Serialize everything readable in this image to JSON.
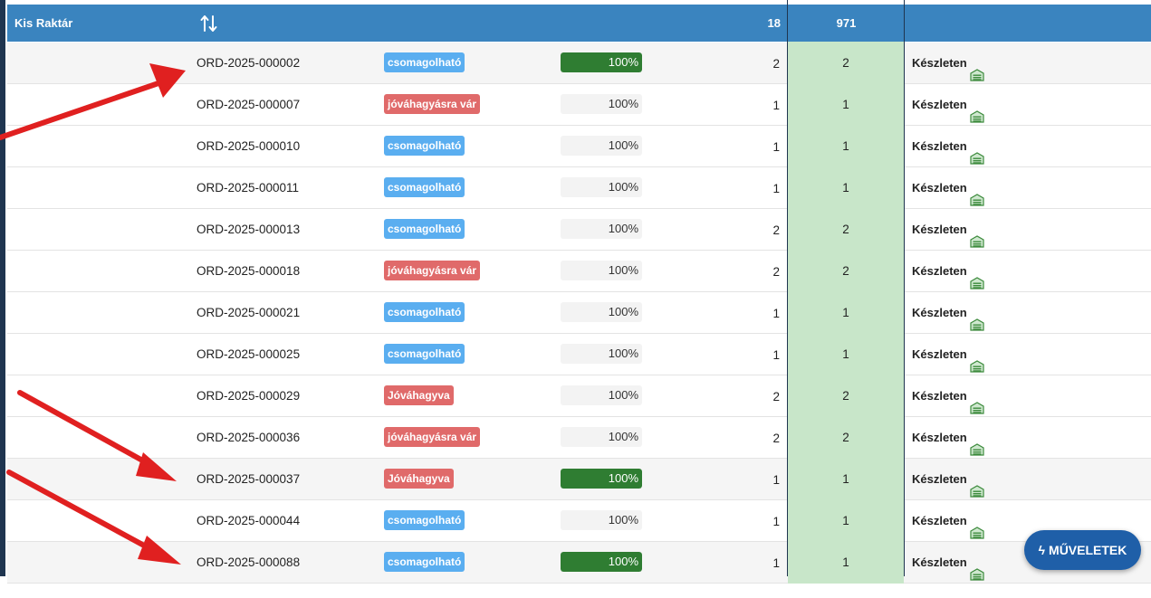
{
  "header": {
    "warehouse_label": "Kis Raktár",
    "total_qty": "18",
    "total_qty2": "971"
  },
  "colors": {
    "header_bg": "#3a84bf",
    "status_blue": "#5aaef0",
    "status_red": "#e06a6a",
    "progress_done": "#2f7d32",
    "stock_cell": "#c8e6c9",
    "annotation_arrow": "#e02020"
  },
  "rows": [
    {
      "order": "ORD-2025-000002",
      "status": "csomagolható",
      "status_color": "blue",
      "progress": 100,
      "progress_label": "100%",
      "done": true,
      "qty": "2",
      "qty2": "2",
      "stock": "Készleten",
      "alt": true
    },
    {
      "order": "ORD-2025-000007",
      "status": "jóváhagyásra vár",
      "status_color": "red",
      "progress": 100,
      "progress_label": "100%",
      "done": false,
      "qty": "1",
      "qty2": "1",
      "stock": "Készleten",
      "alt": false
    },
    {
      "order": "ORD-2025-000010",
      "status": "csomagolható",
      "status_color": "blue",
      "progress": 100,
      "progress_label": "100%",
      "done": false,
      "qty": "1",
      "qty2": "1",
      "stock": "Készleten",
      "alt": false
    },
    {
      "order": "ORD-2025-000011",
      "status": "csomagolható",
      "status_color": "blue",
      "progress": 100,
      "progress_label": "100%",
      "done": false,
      "qty": "1",
      "qty2": "1",
      "stock": "Készleten",
      "alt": false
    },
    {
      "order": "ORD-2025-000013",
      "status": "csomagolható",
      "status_color": "blue",
      "progress": 100,
      "progress_label": "100%",
      "done": false,
      "qty": "2",
      "qty2": "2",
      "stock": "Készleten",
      "alt": false
    },
    {
      "order": "ORD-2025-000018",
      "status": "jóváhagyásra vár",
      "status_color": "red",
      "progress": 100,
      "progress_label": "100%",
      "done": false,
      "qty": "2",
      "qty2": "2",
      "stock": "Készleten",
      "alt": false
    },
    {
      "order": "ORD-2025-000021",
      "status": "csomagolható",
      "status_color": "blue",
      "progress": 100,
      "progress_label": "100%",
      "done": false,
      "qty": "1",
      "qty2": "1",
      "stock": "Készleten",
      "alt": false
    },
    {
      "order": "ORD-2025-000025",
      "status": "csomagolható",
      "status_color": "blue",
      "progress": 100,
      "progress_label": "100%",
      "done": false,
      "qty": "1",
      "qty2": "1",
      "stock": "Készleten",
      "alt": false
    },
    {
      "order": "ORD-2025-000029",
      "status": "Jóváhagyva",
      "status_color": "red",
      "progress": 100,
      "progress_label": "100%",
      "done": false,
      "qty": "2",
      "qty2": "2",
      "stock": "Készleten",
      "alt": false
    },
    {
      "order": "ORD-2025-000036",
      "status": "jóváhagyásra vár",
      "status_color": "red",
      "progress": 100,
      "progress_label": "100%",
      "done": false,
      "qty": "2",
      "qty2": "2",
      "stock": "Készleten",
      "alt": false
    },
    {
      "order": "ORD-2025-000037",
      "status": "Jóváhagyva",
      "status_color": "red",
      "progress": 100,
      "progress_label": "100%",
      "done": true,
      "qty": "1",
      "qty2": "1",
      "stock": "Készleten",
      "alt": true
    },
    {
      "order": "ORD-2025-000044",
      "status": "csomagolható",
      "status_color": "blue",
      "progress": 100,
      "progress_label": "100%",
      "done": false,
      "qty": "1",
      "qty2": "1",
      "stock": "Készleten",
      "alt": false
    },
    {
      "order": "ORD-2025-000088",
      "status": "csomagolható",
      "status_color": "blue",
      "progress": 100,
      "progress_label": "100%",
      "done": true,
      "qty": "1",
      "qty2": "1",
      "stock": "Készleten",
      "alt": true
    }
  ],
  "fab": {
    "label": "MŰVELETEK",
    "icon": "bolt-icon"
  }
}
